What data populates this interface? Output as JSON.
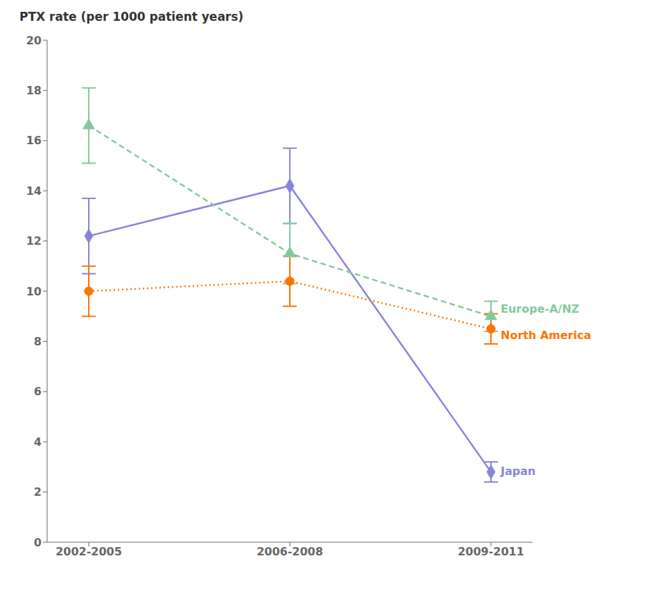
{
  "chart_data": {
    "type": "line",
    "ylabel": "PTX rate (per 1000 patient years)",
    "categories": [
      "2002-2005",
      "2006-2008",
      "2009-2011"
    ],
    "ylim": [
      0,
      20
    ],
    "yticks": [
      0,
      2,
      4,
      6,
      8,
      10,
      12,
      14,
      16,
      18,
      20
    ],
    "grid": false,
    "series": [
      {
        "name": "Japan",
        "values": [
          12.2,
          14.2,
          2.8
        ],
        "yerr_low": [
          1.5,
          1.5,
          0.4
        ],
        "yerr_high": [
          1.5,
          1.5,
          0.4
        ],
        "line_style": "solid",
        "marker": "diamond",
        "color": "#8884d8"
      },
      {
        "name": "Europe-A/NZ",
        "values": [
          16.6,
          11.5,
          9.0
        ],
        "yerr_low": [
          1.5,
          1.2,
          0.6
        ],
        "yerr_high": [
          1.5,
          1.2,
          0.6
        ],
        "line_style": "dashed",
        "marker": "triangle",
        "color": "#82ca9d"
      },
      {
        "name": "North America",
        "values": [
          10.0,
          10.4,
          8.5
        ],
        "yerr_low": [
          1.0,
          1.0,
          0.6
        ],
        "yerr_high": [
          1.0,
          1.0,
          0.6
        ],
        "line_style": "dotted",
        "marker": "circle",
        "color": "#ff7300"
      }
    ]
  }
}
